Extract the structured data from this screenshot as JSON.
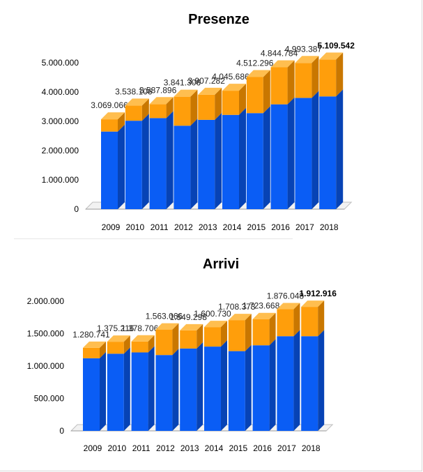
{
  "colors": {
    "blue_front": "#0A5DF5",
    "blue_side": "#0743B5",
    "blue_top": "#3C82FA",
    "orange_front": "#FF9E0B",
    "orange_side": "#C97700",
    "orange_top": "#FFBE4F",
    "floor": "#f2f2f2"
  },
  "chart_data": [
    {
      "type": "bar",
      "title": "Presenze",
      "categories": [
        "2009",
        "2010",
        "2011",
        "2012",
        "2013",
        "2014",
        "2015",
        "2016",
        "2017",
        "2018"
      ],
      "totals": [
        3069066,
        3538106,
        3587896,
        3841306,
        3907282,
        4045686,
        4512296,
        4844784,
        4993387,
        5109542
      ],
      "total_labels": [
        "3.069.066",
        "3.538.106",
        "3.587.896",
        "3.841.306",
        "3.907.282",
        "4.045.686",
        "4.512.296",
        "4.844.784",
        "4.993.387",
        "5.109.542"
      ],
      "series": [
        {
          "values": [
            2650000,
            3020000,
            3110000,
            2850000,
            3050000,
            3220000,
            3280000,
            3580000,
            3800000,
            3850000
          ]
        },
        {
          "values": [
            419066,
            518106,
            477896,
            991306,
            857282,
            825686,
            1232296,
            1264784,
            1193387,
            1259542
          ]
        }
      ],
      "ylim": [
        0,
        5000000
      ],
      "yticks": [
        "0",
        "1.000.000",
        "2.000.000",
        "3.000.000",
        "4.000.000",
        "5.000.000"
      ],
      "bold_last_label": true
    },
    {
      "type": "bar",
      "title": "Arrivi",
      "categories": [
        "2009",
        "2010",
        "2011",
        "2012",
        "2013",
        "2014",
        "2015",
        "2016",
        "2017",
        "2018"
      ],
      "totals": [
        1280741,
        1375216,
        1378706,
        1563066,
        1549298,
        1600730,
        1708373,
        1723668,
        1876048,
        1912916
      ],
      "total_labels": [
        "1.280.741",
        "1.375.216",
        "1.378.706",
        "1.563.066",
        "1.549.298",
        "1.600.730",
        "1.708.373",
        "1.723.668",
        "1.876.048",
        "1.912.916"
      ],
      "series": [
        {
          "values": [
            1120000,
            1190000,
            1210000,
            1170000,
            1270000,
            1300000,
            1230000,
            1320000,
            1460000,
            1460000
          ]
        },
        {
          "values": [
            160741,
            185216,
            168706,
            393066,
            279298,
            300730,
            478373,
            403668,
            416048,
            452916
          ]
        }
      ],
      "ylim": [
        0,
        2000000
      ],
      "yticks": [
        "0",
        "500.000",
        "1.000.000",
        "1.500.000",
        "2.000.000"
      ],
      "bold_last_label": true
    }
  ]
}
